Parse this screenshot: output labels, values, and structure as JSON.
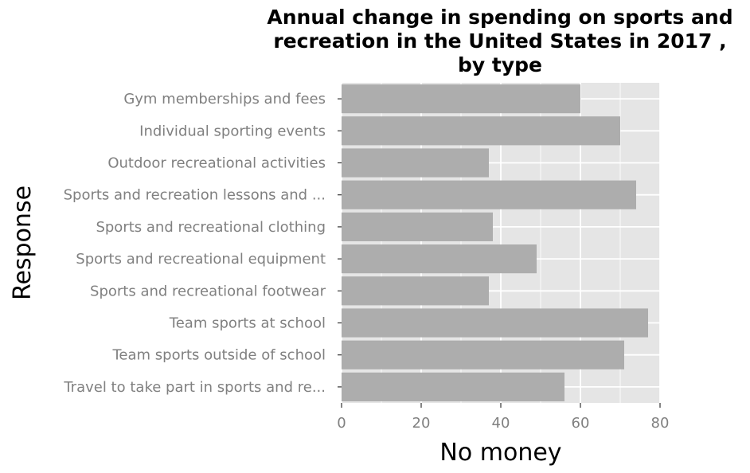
{
  "chart_data": {
    "type": "bar",
    "orientation": "horizontal",
    "title_lines": [
      "Annual change in spending on sports and",
      "recreation in the United States in 2017 ,",
      "by type"
    ],
    "xlabel": "No money",
    "ylabel": "Response",
    "xlim": [
      0,
      80
    ],
    "x_ticks": [
      "0",
      "20",
      "40",
      "60",
      "80"
    ],
    "grid": true,
    "categories": [
      "Gym memberships and fees",
      "Individual sporting events",
      "Outdoor recreational activities",
      "Sports and recreation lessons and ...",
      "Sports and recreational clothing",
      "Sports and recreational equipment",
      "Sports and recreational footwear",
      "Team sports at school",
      "Team sports outside of school",
      "Travel to take part in sports and re..."
    ],
    "values": [
      60,
      70,
      37,
      74,
      38,
      49,
      37,
      77,
      71,
      56
    ],
    "colors": {
      "bar": "#adadad",
      "panel": "#e5e5e5",
      "grid": "#ffffff",
      "tick_text": "#808080"
    }
  }
}
